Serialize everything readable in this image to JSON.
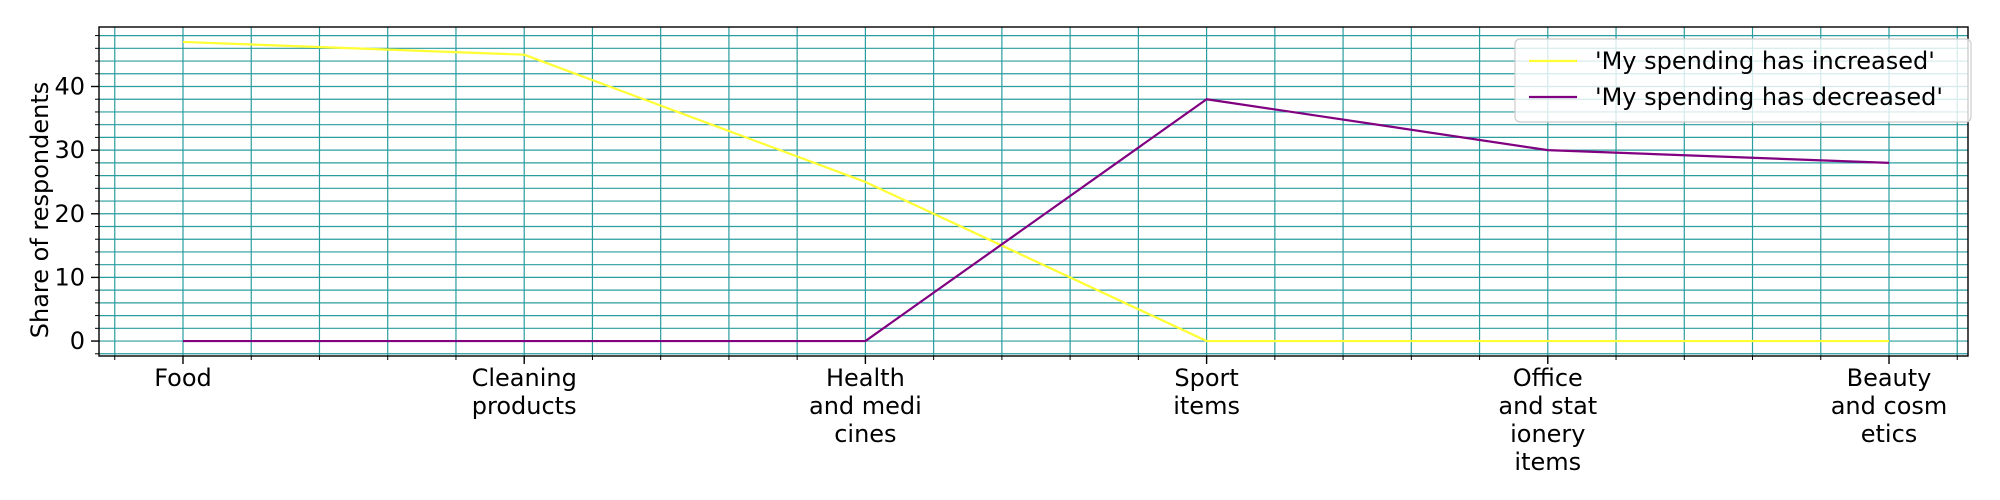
{
  "chart_data": {
    "type": "line",
    "title": "",
    "xlabel": "",
    "ylabel": "Share of respondents",
    "categories": [
      "Food",
      "Cleaning\nproducts",
      "Health\nand medi\ncines",
      "Sport\nitems",
      "Office\nand stat\nionery\nitems",
      "Beauty\nand cosm\netics"
    ],
    "series": [
      {
        "name": "'My spending has increased'",
        "color": "#ffff33",
        "values": [
          47,
          45,
          25,
          0,
          0,
          0
        ]
      },
      {
        "name": "'My spending has decreased'",
        "color": "#800080",
        "values": [
          0,
          0,
          0,
          38,
          30,
          28
        ]
      }
    ],
    "y_ticks": [
      0,
      10,
      20,
      30,
      40
    ],
    "ylim": [
      -2.35,
      49.35
    ],
    "grid": true,
    "grid_color": "#2a9d9f",
    "legend_position": "upper right"
  }
}
